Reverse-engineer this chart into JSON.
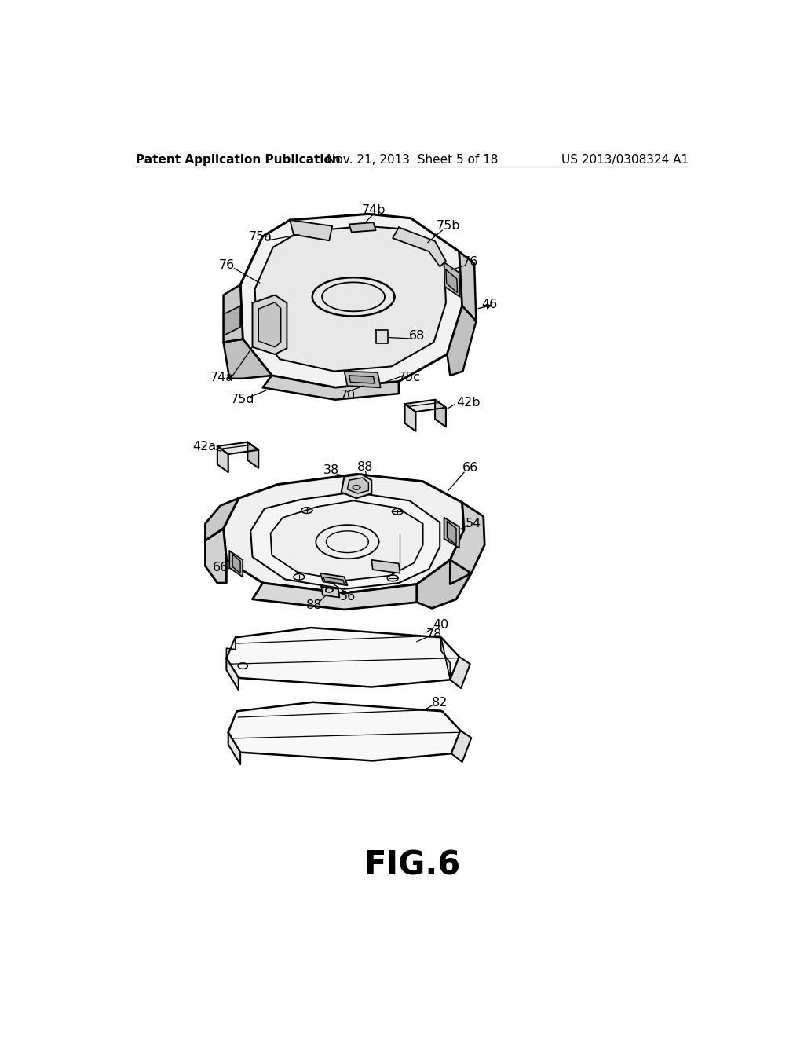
{
  "bg_color": "#ffffff",
  "line_color": "#000000",
  "header_left": "Patent Application Publication",
  "header_center": "Nov. 21, 2013  Sheet 5 of 18",
  "header_right": "US 2013/0308324 A1",
  "figure_label": "FIG.6",
  "header_fontsize": 11,
  "label_fontsize": 11.5,
  "fig_label_fontsize": 30
}
